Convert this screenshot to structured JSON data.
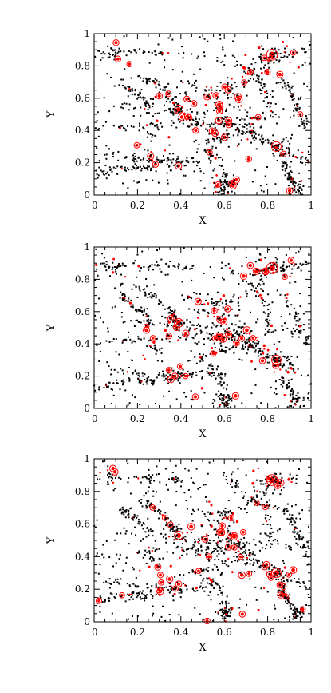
{
  "chart_data": [
    {
      "type": "scatter",
      "xlabel": "X",
      "ylabel": "Y",
      "xlim": [
        0,
        1
      ],
      "ylim": [
        0,
        1
      ],
      "xticks": [
        "0",
        "0.2",
        "0.4",
        "0.6",
        "0.8",
        "1"
      ],
      "yticks": [
        "0",
        "0.2",
        "0.4",
        "0.6",
        "0.8",
        "1"
      ],
      "grid": false,
      "colors": {
        "points": "#000000",
        "halos": "#ff0000"
      },
      "points_description_count": 1150,
      "series": [
        {
          "values": "clustered filamentary distribution of black points"
        },
        {
          "values": "red circular halos overlaid on dense nodes"
        }
      ]
    },
    {
      "type": "scatter",
      "xlabel": "X",
      "ylabel": "Y",
      "xlim": [
        0,
        1
      ],
      "ylim": [
        0,
        1
      ],
      "xticks": [
        "0",
        "0.2",
        "0.4",
        "0.6",
        "0.8",
        "1"
      ],
      "yticks": [
        "0",
        "0.2",
        "0.4",
        "0.6",
        "0.8",
        "1"
      ],
      "grid": false,
      "colors": {
        "points": "#000000",
        "halos": "#ff0000"
      },
      "points_description_count": 1150,
      "series": [
        {
          "values": "clustered filamentary distribution of black points"
        },
        {
          "values": "red circular halos overlaid on dense nodes"
        }
      ]
    },
    {
      "type": "scatter",
      "xlabel": "X",
      "ylabel": "Y",
      "xlim": [
        0,
        1
      ],
      "ylim": [
        0,
        1
      ],
      "xticks": [
        "0",
        "0.2",
        "0.4",
        "0.6",
        "0.8",
        "1"
      ],
      "yticks": [
        "0",
        "0.2",
        "0.4",
        "0.6",
        "0.8",
        "1"
      ],
      "grid": false,
      "colors": {
        "points": "#000000",
        "halos": "#ff0000"
      },
      "points_description_count": 1150,
      "series": [
        {
          "values": "clustered filamentary distribution of black points"
        },
        {
          "values": "red circular halos overlaid on dense nodes"
        }
      ]
    }
  ]
}
